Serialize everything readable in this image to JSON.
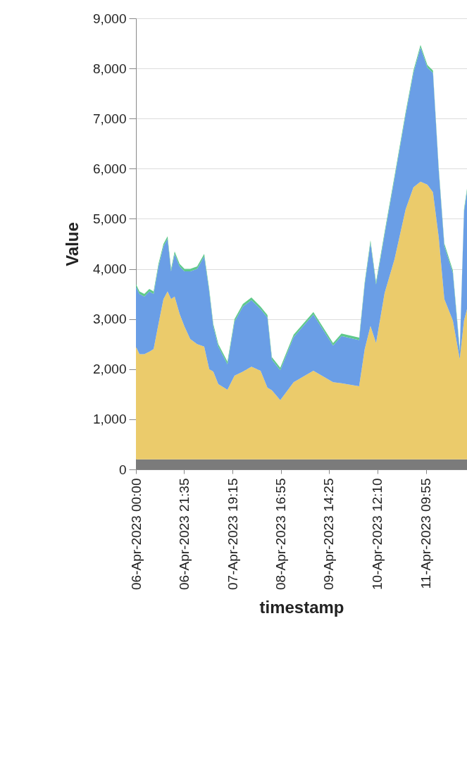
{
  "chart_data": {
    "type": "area",
    "stacked": true,
    "xlabel": "timestamp",
    "ylabel": "Value",
    "grid": "y",
    "x": [
      "2023-04-06T00:00",
      "2023-04-06T01:35",
      "2023-04-06T03:45",
      "2023-04-06T06:00",
      "2023-04-06T07:55",
      "2023-04-06T10:05",
      "2023-04-06T12:20",
      "2023-04-06T14:10",
      "2023-04-06T15:45",
      "2023-04-06T17:20",
      "2023-04-06T19:35",
      "2023-04-06T21:45",
      "2023-04-07T00:20",
      "2023-04-07T03:25",
      "2023-04-07T06:35",
      "2023-04-07T08:50",
      "2023-04-07T10:40",
      "2023-04-07T12:55",
      "2023-04-07T17:00",
      "2023-04-07T20:10",
      "2023-04-07T23:55",
      "2023-04-08T03:45",
      "2023-04-08T07:50",
      "2023-04-08T10:55",
      "2023-04-08T12:55",
      "2023-04-08T16:40",
      "2023-04-08T22:40",
      "2023-04-09T07:30",
      "2023-04-09T16:20",
      "2023-04-09T20:05",
      "2023-04-10T04:00",
      "2023-04-10T06:30",
      "2023-04-10T09:05",
      "2023-04-10T11:35",
      "2023-04-10T15:25",
      "2023-04-10T19:50",
      "2023-04-11T00:50",
      "2023-04-11T04:20",
      "2023-04-11T07:30",
      "2023-04-11T10:35",
      "2023-04-11T13:05",
      "2023-04-11T15:40",
      "2023-04-11T18:10",
      "2023-04-11T22:00",
      "2023-04-12T01:05",
      "2023-04-12T03:00",
      "2023-04-12T04:20"
    ],
    "series": [
      {
        "color": "#7b7b7b",
        "values": [
          200,
          200,
          200,
          200,
          200,
          200,
          200,
          200,
          200,
          200,
          200,
          200,
          200,
          200,
          200,
          200,
          200,
          200,
          200,
          200,
          200,
          200,
          200,
          200,
          200,
          200,
          200,
          200,
          200,
          200,
          200,
          200,
          200,
          200,
          200,
          200,
          200,
          200,
          200,
          200,
          200,
          200,
          200,
          200,
          200,
          200,
          200
        ]
      },
      {
        "color": "#ebcb6b",
        "values": [
          2250,
          2100,
          2100,
          2150,
          2200,
          2700,
          3200,
          3350,
          3200,
          3250,
          2900,
          2650,
          2400,
          2300,
          2250,
          1800,
          1750,
          1500,
          1390,
          1670,
          1750,
          1850,
          1770,
          1430,
          1380,
          1180,
          1540,
          1770,
          1540,
          1520,
          1460,
          2200,
          2660,
          2320,
          3320,
          3990,
          4990,
          5430,
          5540,
          5480,
          5330,
          4430,
          3200,
          2770,
          2000,
          2770,
          3000
        ]
      },
      {
        "color": "#6a9ee6",
        "values": [
          1200,
          1200,
          1150,
          1200,
          1100,
          1150,
          1050,
          1050,
          550,
          850,
          950,
          1100,
          1350,
          1500,
          1800,
          1550,
          900,
          750,
          510,
          1080,
          1300,
          1330,
          1230,
          1400,
          610,
          600,
          900,
          1120,
          730,
          940,
          920,
          1290,
          1660,
          1170,
          1170,
          1610,
          1890,
          2280,
          2680,
          2340,
          2380,
          1340,
          1060,
          950,
          150,
          2170,
          2350
        ]
      },
      {
        "color": "#5fc98b",
        "values": [
          50,
          50,
          50,
          50,
          50,
          50,
          50,
          50,
          50,
          50,
          50,
          50,
          50,
          50,
          50,
          50,
          50,
          50,
          50,
          50,
          50,
          50,
          50,
          50,
          50,
          50,
          50,
          50,
          50,
          50,
          50,
          50,
          50,
          50,
          50,
          50,
          50,
          50,
          50,
          50,
          50,
          50,
          50,
          50,
          50,
          50,
          50
        ]
      }
    ],
    "xlim": [
      "2023-04-06T00:00",
      "2023-04-12T04:20"
    ],
    "xticks": [
      {
        "value": "2023-04-06T00:00",
        "label": "06-Apr-2023 00:00"
      },
      {
        "value": "2023-04-06T21:35",
        "label": "06-Apr-2023 21:35"
      },
      {
        "value": "2023-04-07T19:15",
        "label": "07-Apr-2023 19:15"
      },
      {
        "value": "2023-04-08T16:55",
        "label": "08-Apr-2023 16:55"
      },
      {
        "value": "2023-04-09T14:25",
        "label": "09-Apr-2023 14:25"
      },
      {
        "value": "2023-04-10T12:10",
        "label": "10-Apr-2023 12:10"
      },
      {
        "value": "2023-04-11T09:55",
        "label": "11-Apr-2023 09:55"
      }
    ],
    "ylim": [
      0,
      9000
    ],
    "yticks": [
      {
        "value": 0,
        "label": "0"
      },
      {
        "value": 1000,
        "label": "1,000"
      },
      {
        "value": 2000,
        "label": "2,000"
      },
      {
        "value": 3000,
        "label": "3,000"
      },
      {
        "value": 4000,
        "label": "4,000"
      },
      {
        "value": 5000,
        "label": "5,000"
      },
      {
        "value": 6000,
        "label": "6,000"
      },
      {
        "value": 7000,
        "label": "7,000"
      },
      {
        "value": 8000,
        "label": "8,000"
      },
      {
        "value": 9000,
        "label": "9,000"
      }
    ]
  }
}
